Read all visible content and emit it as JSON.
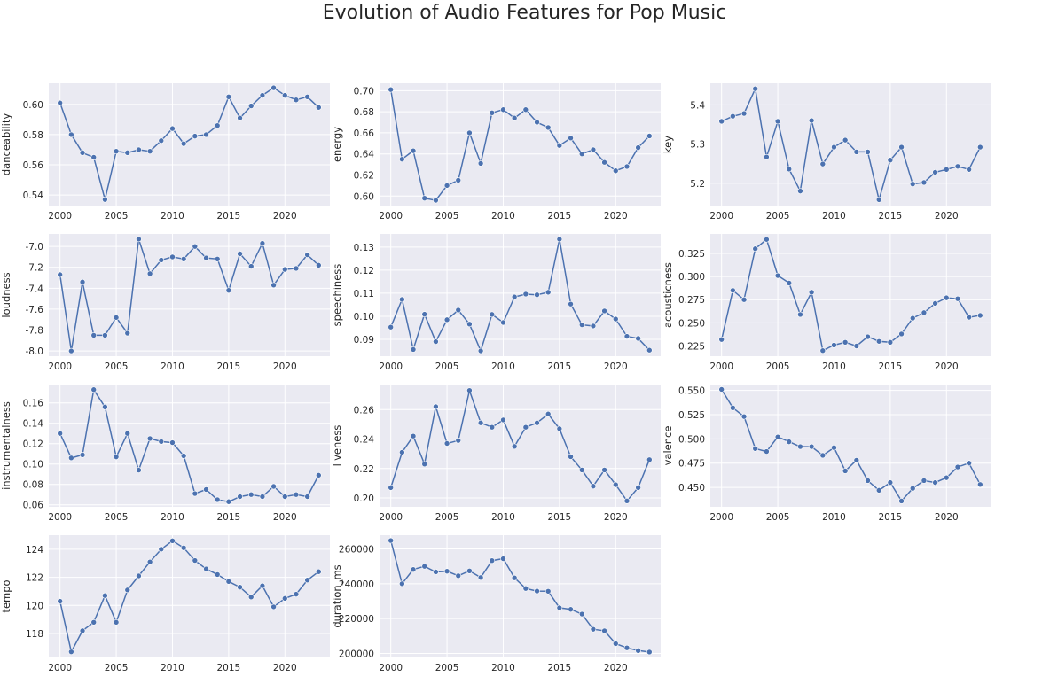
{
  "title": "Evolution of Audio Features for Pop Music",
  "style": {
    "background": "#eaeaf2",
    "grid": "#ffffff",
    "line": "#4c72b0",
    "text": "#262626"
  },
  "chart_data": [
    {
      "type": "line",
      "ylabel": "danceability",
      "grid": true,
      "x": [
        2000,
        2001,
        2002,
        2003,
        2004,
        2005,
        2006,
        2007,
        2008,
        2009,
        2010,
        2011,
        2012,
        2013,
        2014,
        2015,
        2016,
        2017,
        2018,
        2019,
        2020,
        2021,
        2022,
        2023
      ],
      "y": [
        0.601,
        0.58,
        0.568,
        0.565,
        0.537,
        0.569,
        0.568,
        0.57,
        0.569,
        0.576,
        0.584,
        0.574,
        0.579,
        0.58,
        0.586,
        0.605,
        0.591,
        0.599,
        0.606,
        0.611,
        0.606,
        0.603,
        0.605,
        0.598
      ],
      "xticks": [
        "2000",
        "2005",
        "2010",
        "2015",
        "2020"
      ],
      "yticks": [
        "0.54",
        "0.56",
        "0.58",
        "0.60"
      ],
      "ylim": [
        0.533,
        0.614
      ],
      "xlim": [
        1999.0,
        2024.0
      ]
    },
    {
      "type": "line",
      "ylabel": "energy",
      "grid": true,
      "x": [
        2000,
        2001,
        2002,
        2003,
        2004,
        2005,
        2006,
        2007,
        2008,
        2009,
        2010,
        2011,
        2012,
        2013,
        2014,
        2015,
        2016,
        2017,
        2018,
        2019,
        2020,
        2021,
        2022,
        2023
      ],
      "y": [
        0.701,
        0.635,
        0.643,
        0.598,
        0.596,
        0.61,
        0.615,
        0.66,
        0.631,
        0.679,
        0.682,
        0.674,
        0.682,
        0.67,
        0.665,
        0.648,
        0.655,
        0.64,
        0.644,
        0.632,
        0.624,
        0.628,
        0.646,
        0.657
      ],
      "xticks": [
        "2000",
        "2005",
        "2010",
        "2015",
        "2020"
      ],
      "yticks": [
        "0.60",
        "0.62",
        "0.64",
        "0.66",
        "0.68",
        "0.70"
      ],
      "ylim": [
        0.591,
        0.707
      ],
      "xlim": [
        1999.0,
        2024.0
      ]
    },
    {
      "type": "line",
      "ylabel": "key",
      "grid": true,
      "x": [
        2000,
        2001,
        2002,
        2003,
        2004,
        2005,
        2006,
        2007,
        2008,
        2009,
        2010,
        2011,
        2012,
        2013,
        2014,
        2015,
        2016,
        2017,
        2018,
        2019,
        2020,
        2021,
        2022,
        2023
      ],
      "y": [
        5.358,
        5.371,
        5.378,
        5.441,
        5.267,
        5.358,
        5.236,
        5.18,
        5.36,
        5.249,
        5.292,
        5.31,
        5.28,
        5.28,
        5.158,
        5.259,
        5.292,
        5.198,
        5.202,
        5.228,
        5.235,
        5.243,
        5.235,
        5.292
      ],
      "xticks": [
        "2000",
        "2005",
        "2010",
        "2015",
        "2020"
      ],
      "yticks": [
        "5.2",
        "5.3",
        "5.4"
      ],
      "ylim": [
        5.143,
        5.455
      ],
      "xlim": [
        1999.0,
        2024.0
      ]
    },
    {
      "type": "line",
      "ylabel": "loudness",
      "grid": true,
      "x": [
        2000,
        2001,
        2002,
        2003,
        2004,
        2005,
        2006,
        2007,
        2008,
        2009,
        2010,
        2011,
        2012,
        2013,
        2014,
        2015,
        2016,
        2017,
        2018,
        2019,
        2020,
        2021,
        2022,
        2023
      ],
      "y": [
        -7.27,
        -8.0,
        -7.34,
        -7.85,
        -7.85,
        -7.68,
        -7.83,
        -6.93,
        -7.26,
        -7.13,
        -7.1,
        -7.12,
        -7.0,
        -7.11,
        -7.12,
        -7.42,
        -7.07,
        -7.19,
        -6.97,
        -7.37,
        -7.22,
        -7.21,
        -7.08,
        -7.18
      ],
      "xticks": [
        "2000",
        "2005",
        "2010",
        "2015",
        "2020"
      ],
      "yticks": [
        "-8.0",
        "-7.8",
        "-7.6",
        "-7.4",
        "-7.2",
        "-7.0"
      ],
      "ylim": [
        -8.05,
        -6.88
      ],
      "xlim": [
        1999.0,
        2024.0
      ]
    },
    {
      "type": "line",
      "ylabel": "speechiness",
      "grid": true,
      "x": [
        2000,
        2001,
        2002,
        2003,
        2004,
        2005,
        2006,
        2007,
        2008,
        2009,
        2010,
        2011,
        2012,
        2013,
        2014,
        2015,
        2016,
        2017,
        2018,
        2019,
        2020,
        2021,
        2022,
        2023
      ],
      "y": [
        0.0953,
        0.1073,
        0.0856,
        0.1009,
        0.089,
        0.0985,
        0.1027,
        0.0966,
        0.085,
        0.1008,
        0.0973,
        0.1084,
        0.1096,
        0.1093,
        0.1104,
        0.1334,
        0.1053,
        0.0963,
        0.0958,
        0.1023,
        0.0988,
        0.0913,
        0.0904,
        0.0853
      ],
      "xticks": [
        "2000",
        "2005",
        "2010",
        "2015",
        "2020"
      ],
      "yticks": [
        "0.09",
        "0.10",
        "0.11",
        "0.12",
        "0.13"
      ],
      "ylim": [
        0.0827,
        0.1357
      ],
      "xlim": [
        1999.0,
        2024.0
      ]
    },
    {
      "type": "line",
      "ylabel": "acousticness",
      "grid": true,
      "x": [
        2000,
        2001,
        2002,
        2003,
        2004,
        2005,
        2006,
        2007,
        2008,
        2009,
        2010,
        2011,
        2012,
        2013,
        2014,
        2015,
        2016,
        2017,
        2018,
        2019,
        2020,
        2021,
        2022,
        2023
      ],
      "y": [
        0.232,
        0.285,
        0.275,
        0.33,
        0.34,
        0.301,
        0.293,
        0.259,
        0.283,
        0.22,
        0.226,
        0.229,
        0.225,
        0.235,
        0.23,
        0.229,
        0.238,
        0.255,
        0.261,
        0.271,
        0.277,
        0.276,
        0.256,
        0.258
      ],
      "xticks": [
        "2000",
        "2005",
        "2010",
        "2015",
        "2020"
      ],
      "yticks": [
        "0.225",
        "0.250",
        "0.275",
        "0.300",
        "0.325"
      ],
      "ylim": [
        0.214,
        0.346
      ],
      "xlim": [
        1999.0,
        2024.0
      ]
    },
    {
      "type": "line",
      "ylabel": "instrumentalness",
      "grid": true,
      "x": [
        2000,
        2001,
        2002,
        2003,
        2004,
        2005,
        2006,
        2007,
        2008,
        2009,
        2010,
        2011,
        2012,
        2013,
        2014,
        2015,
        2016,
        2017,
        2018,
        2019,
        2020,
        2021,
        2022,
        2023
      ],
      "y": [
        0.13,
        0.106,
        0.109,
        0.173,
        0.156,
        0.107,
        0.13,
        0.094,
        0.125,
        0.122,
        0.121,
        0.108,
        0.071,
        0.075,
        0.065,
        0.063,
        0.068,
        0.07,
        0.068,
        0.078,
        0.068,
        0.07,
        0.068,
        0.089
      ],
      "xticks": [
        "2000",
        "2005",
        "2010",
        "2015",
        "2020"
      ],
      "yticks": [
        "0.06",
        "0.08",
        "0.10",
        "0.12",
        "0.14",
        "0.16"
      ],
      "ylim": [
        0.058,
        0.178
      ],
      "xlim": [
        1999.0,
        2024.0
      ]
    },
    {
      "type": "line",
      "ylabel": "liveness",
      "grid": true,
      "x": [
        2000,
        2001,
        2002,
        2003,
        2004,
        2005,
        2006,
        2007,
        2008,
        2009,
        2010,
        2011,
        2012,
        2013,
        2014,
        2015,
        2016,
        2017,
        2018,
        2019,
        2020,
        2021,
        2022,
        2023
      ],
      "y": [
        0.207,
        0.231,
        0.242,
        0.223,
        0.262,
        0.237,
        0.239,
        0.273,
        0.251,
        0.248,
        0.253,
        0.235,
        0.248,
        0.251,
        0.257,
        0.247,
        0.228,
        0.219,
        0.208,
        0.219,
        0.209,
        0.198,
        0.207,
        0.226
      ],
      "xticks": [
        "2000",
        "2005",
        "2010",
        "2015",
        "2020"
      ],
      "yticks": [
        "0.20",
        "0.22",
        "0.24",
        "0.26"
      ],
      "ylim": [
        0.194,
        0.277
      ],
      "xlim": [
        1999.0,
        2024.0
      ]
    },
    {
      "type": "line",
      "ylabel": "valence",
      "grid": true,
      "x": [
        2000,
        2001,
        2002,
        2003,
        2004,
        2005,
        2006,
        2007,
        2008,
        2009,
        2010,
        2011,
        2012,
        2013,
        2014,
        2015,
        2016,
        2017,
        2018,
        2019,
        2020,
        2021,
        2022,
        2023
      ],
      "y": [
        0.551,
        0.532,
        0.523,
        0.49,
        0.487,
        0.502,
        0.497,
        0.492,
        0.492,
        0.483,
        0.491,
        0.467,
        0.478,
        0.457,
        0.447,
        0.455,
        0.436,
        0.449,
        0.457,
        0.455,
        0.46,
        0.471,
        0.475,
        0.453
      ],
      "xticks": [
        "2000",
        "2005",
        "2010",
        "2015",
        "2020"
      ],
      "yticks": [
        "0.450",
        "0.475",
        "0.500",
        "0.525",
        "0.550"
      ],
      "ylim": [
        0.43,
        0.556
      ],
      "xlim": [
        1999.0,
        2024.0
      ]
    },
    {
      "type": "line",
      "ylabel": "tempo",
      "grid": true,
      "x": [
        2000,
        2001,
        2002,
        2003,
        2004,
        2005,
        2006,
        2007,
        2008,
        2009,
        2010,
        2011,
        2012,
        2013,
        2014,
        2015,
        2016,
        2017,
        2018,
        2019,
        2020,
        2021,
        2022,
        2023
      ],
      "y": [
        120.3,
        116.7,
        118.2,
        118.8,
        120.7,
        118.8,
        121.1,
        122.1,
        123.1,
        124.0,
        124.6,
        124.1,
        123.2,
        122.6,
        122.2,
        121.7,
        121.3,
        120.6,
        121.4,
        119.9,
        120.5,
        120.8,
        121.8,
        122.4
      ],
      "xticks": [
        "2000",
        "2005",
        "2010",
        "2015",
        "2020"
      ],
      "yticks": [
        "118",
        "120",
        "122",
        "124"
      ],
      "ylim": [
        116.3,
        125.0
      ],
      "xlim": [
        1999.0,
        2024.0
      ]
    },
    {
      "type": "line",
      "ylabel": "duration_ms",
      "grid": true,
      "x": [
        2000,
        2001,
        2002,
        2003,
        2004,
        2005,
        2006,
        2007,
        2008,
        2009,
        2010,
        2011,
        2012,
        2013,
        2014,
        2015,
        2016,
        2017,
        2018,
        2019,
        2020,
        2021,
        2022,
        2023
      ],
      "y": [
        264800,
        240000,
        248200,
        250000,
        246800,
        247200,
        244600,
        247400,
        243600,
        253300,
        254400,
        243400,
        237300,
        235800,
        235700,
        226200,
        225300,
        222600,
        213900,
        213000,
        205600,
        203200,
        201600,
        200800
      ],
      "xticks": [
        "2000",
        "2005",
        "2010",
        "2015",
        "2020"
      ],
      "yticks": [
        "200000",
        "220000",
        "240000",
        "260000"
      ],
      "ylim": [
        197700,
        267900
      ],
      "xlim": [
        1999.0,
        2024.0
      ]
    }
  ]
}
